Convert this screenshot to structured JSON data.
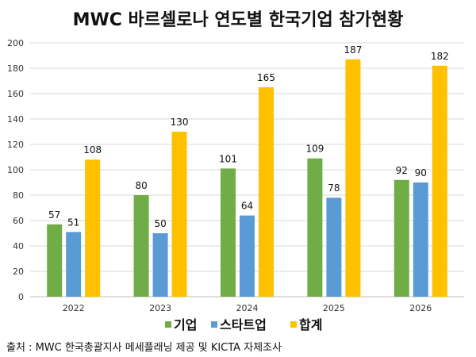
{
  "chart_data": {
    "type": "bar",
    "title": "MWC 바르셀로나 연도별 한국기업 참가현황",
    "categories": [
      "2022",
      "2023",
      "2024",
      "2025",
      "2026"
    ],
    "series": [
      {
        "name": "기업",
        "color": "#70AD47",
        "values": [
          57,
          80,
          101,
          109,
          92
        ]
      },
      {
        "name": "스타트업",
        "color": "#5B9BD5",
        "values": [
          51,
          50,
          64,
          78,
          90
        ]
      },
      {
        "name": "합계",
        "color": "#FFC000",
        "values": [
          108,
          130,
          165,
          187,
          182
        ]
      }
    ],
    "ylim": [
      0,
      200
    ],
    "yticks": [
      0,
      20,
      40,
      60,
      80,
      100,
      120,
      140,
      160,
      180,
      200
    ],
    "grid": true,
    "legend": "bottom",
    "xlabel": "",
    "ylabel": ""
  },
  "source": "출처 : MWC 한국총괄지사 메세플래닝 제공 및 KICTA 자체조사"
}
